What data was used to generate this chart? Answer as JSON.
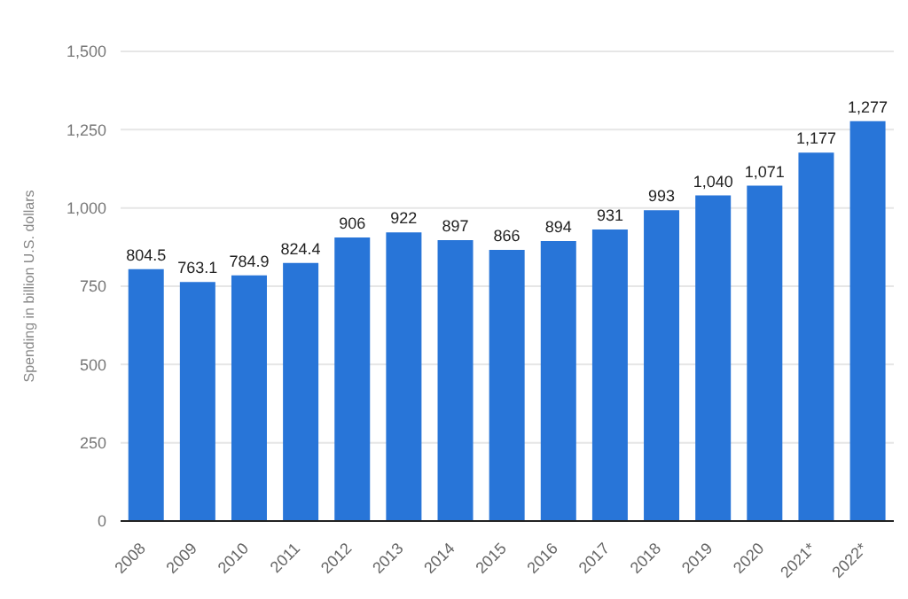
{
  "chart_data": {
    "type": "bar",
    "ylabel": "Spending in billion U.S. dollars",
    "categories": [
      "2008",
      "2009",
      "2010",
      "2011",
      "2012",
      "2013",
      "2014",
      "2015",
      "2016",
      "2017",
      "2018",
      "2019",
      "2020",
      "2021*",
      "2022*"
    ],
    "values": [
      804.5,
      763.1,
      784.9,
      824.4,
      906,
      922,
      897,
      866,
      894,
      931,
      993,
      1040,
      1071,
      1177,
      1277
    ],
    "value_labels": [
      "804.5",
      "763.1",
      "784.9",
      "824.4",
      "906",
      "922",
      "897",
      "866",
      "894",
      "931",
      "993",
      "1,040",
      "1,071",
      "1,177",
      "1,277"
    ],
    "color": "#2875d8",
    "ylim": [
      0,
      1500
    ],
    "yticks": [
      0,
      250,
      500,
      750,
      {
        "value": 1000,
        "label": "1,000"
      },
      {
        "value": 1250,
        "label": "1,250"
      },
      {
        "value": 1500,
        "label": "1,500"
      }
    ],
    "grid": "y"
  }
}
